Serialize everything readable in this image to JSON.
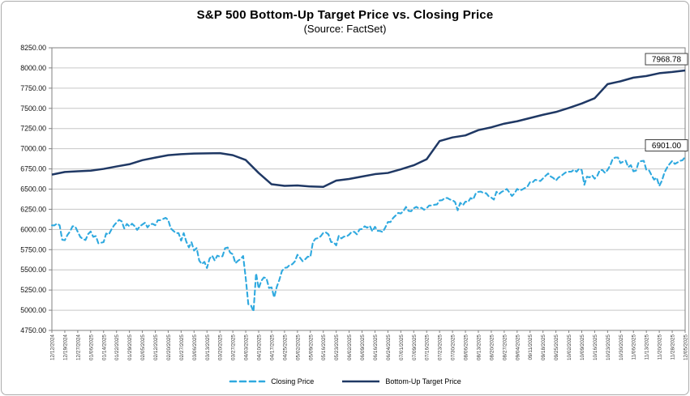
{
  "title": "S&P 500 Bottom-Up Target Price vs. Closing Price",
  "subtitle": "(Source: FactSet)",
  "colors": {
    "closing_line": "#2FA9DF",
    "target_line": "#1F3864",
    "gridline": "#c6c6c6",
    "plot_border": "#808080",
    "label_box_border": "#404040"
  },
  "legend": [
    {
      "label": "Closing Price",
      "style": "dashed"
    },
    {
      "label": "Bottom-Up Target Price",
      "style": "solid"
    }
  ],
  "end_labels": {
    "target": "7968.78",
    "closing": "6901.00"
  },
  "chart_data": {
    "type": "line",
    "title": "S&P 500 Bottom-Up Target Price vs. Closing Price",
    "subtitle": "(Source: FactSet)",
    "ylim": [
      4750,
      8250
    ],
    "ytick_step": 250,
    "y_tick_labels": [
      "8250.00",
      "8000.00",
      "7750.00",
      "7500.00",
      "7250.00",
      "7000.00",
      "6750.00",
      "6500.00",
      "6250.00",
      "6000.00",
      "5750.00",
      "5500.00",
      "5250.00",
      "5000.00",
      "4750.00"
    ],
    "x_labels": [
      "12/12/2024",
      "12/19/2024",
      "12/27/2024",
      "01/06/2025",
      "01/14/2025",
      "01/22/2025",
      "01/29/2025",
      "02/05/2025",
      "02/12/2025",
      "02/20/2025",
      "02/27/2025",
      "03/06/2025",
      "03/13/2025",
      "03/20/2025",
      "03/27/2025",
      "04/03/2025",
      "04/10/2025",
      "04/17/2025",
      "04/25/2025",
      "05/02/2025",
      "05/09/2025",
      "05/16/2025",
      "05/23/2025",
      "06/02/2025",
      "06/09/2025",
      "06/16/2025",
      "06/24/2025",
      "07/01/2025",
      "07/09/2025",
      "07/16/2025",
      "07/23/2025",
      "07/30/2025",
      "08/06/2025",
      "08/13/2025",
      "08/20/2025",
      "08/27/2025",
      "09/04/2025",
      "09/11/2025",
      "09/18/2025",
      "09/25/2025",
      "10/02/2025",
      "10/09/2025",
      "10/16/2025",
      "10/23/2025",
      "10/30/2025",
      "11/06/2025",
      "11/13/2025",
      "11/20/2025",
      "11/28/2025",
      "12/05/2025"
    ],
    "grid": true,
    "legend_position": "bottom",
    "series": [
      {
        "name": "Closing Price",
        "color": "#2FA9DF",
        "dash": true,
        "end_label": "6901.00",
        "values": [
          6051,
          6051,
          6074,
          6051,
          5872,
          5867,
          5931,
          5974,
          6040,
          6038,
          5971,
          5907,
          5882,
          5869,
          5942,
          5975,
          5909,
          5918,
          5827,
          5836,
          5843,
          5950,
          5937,
          5997,
          6049,
          6086,
          6119,
          6101,
          6012,
          6068,
          6039,
          6071,
          6041,
          5995,
          6038,
          6061,
          6083,
          6026,
          6066,
          6069,
          6052,
          6115,
          6115,
          6130,
          6144,
          6118,
          6013,
          5983,
          5955,
          5956,
          5862,
          5955,
          5850,
          5778,
          5843,
          5739,
          5770,
          5615,
          5572,
          5599,
          5522,
          5639,
          5675,
          5615,
          5676,
          5663,
          5668,
          5768,
          5777,
          5712,
          5693,
          5581,
          5612,
          5633,
          5671,
          5396,
          5074,
          5062,
          4983,
          5457,
          5268,
          5363,
          5406,
          5397,
          5276,
          5283,
          5158,
          5288,
          5376,
          5485,
          5525,
          5529,
          5561,
          5569,
          5604,
          5687,
          5650,
          5607,
          5631,
          5664,
          5660,
          5844,
          5886,
          5893,
          5916,
          5958,
          5963,
          5940,
          5845,
          5842,
          5803,
          5922,
          5889,
          5912,
          5912,
          5936,
          5970,
          5971,
          5939,
          6000,
          6006,
          6039,
          6022,
          6045,
          5977,
          6033,
          5983,
          5981,
          5968,
          6025,
          6092,
          6092,
          6141,
          6173,
          6205,
          6198,
          6227,
          6279,
          6230,
          6226,
          6263,
          6280,
          6260,
          6269,
          6244,
          6264,
          6297,
          6297,
          6306,
          6310,
          6359,
          6363,
          6389,
          6390,
          6371,
          6363,
          6339,
          6238,
          6330,
          6299,
          6345,
          6340,
          6389,
          6373,
          6446,
          6466,
          6469,
          6450,
          6449,
          6411,
          6395,
          6370,
          6467,
          6439,
          6466,
          6481,
          6501,
          6460,
          6415,
          6448,
          6502,
          6481,
          6495,
          6513,
          6532,
          6587,
          6584,
          6615,
          6607,
          6600,
          6632,
          6664,
          6693,
          6656,
          6638,
          6605,
          6644,
          6661,
          6688,
          6711,
          6715,
          6716,
          6740,
          6715,
          6754,
          6735,
          6553,
          6654,
          6645,
          6671,
          6629,
          6664,
          6735,
          6736,
          6700,
          6738,
          6792,
          6876,
          6891,
          6891,
          6822,
          6840,
          6852,
          6772,
          6796,
          6720,
          6729,
          6833,
          6847,
          6851,
          6737,
          6734,
          6672,
          6617,
          6642,
          6539,
          6603,
          6705,
          6766,
          6812,
          6849,
          6812,
          6829,
          6850,
          6857,
          6901
        ]
      },
      {
        "name": "Bottom-Up Target Price",
        "color": "#1F3864",
        "dash": false,
        "end_label": "7968.78",
        "values": [
          6679,
          6712,
          6721,
          6728,
          6750,
          6780,
          6808,
          6858,
          6890,
          6920,
          6933,
          6940,
          6943,
          6945,
          6920,
          6860,
          6700,
          6560,
          6540,
          6545,
          6532,
          6528,
          6605,
          6625,
          6655,
          6685,
          6700,
          6745,
          6795,
          6870,
          7095,
          7140,
          7165,
          7230,
          7265,
          7310,
          7340,
          7380,
          7420,
          7455,
          7505,
          7560,
          7625,
          7800,
          7835,
          7880,
          7900,
          7935,
          7950,
          7968.78
        ]
      }
    ]
  }
}
